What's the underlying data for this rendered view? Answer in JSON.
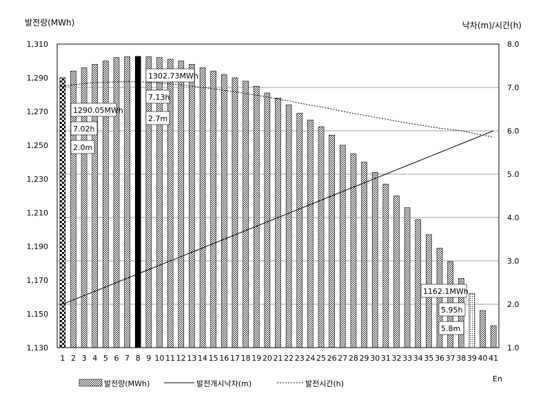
{
  "chart_data": {
    "type": "bar+line",
    "left_axis_title": "발전량(MWh)",
    "right_axis_title": "낙차(m)/시간(h)",
    "x_end_label": "En",
    "left_ylim": [
      1130,
      1310
    ],
    "left_ticks": [
      "1,130",
      "1,150",
      "1,170",
      "1,190",
      "1,210",
      "1,230",
      "1,250",
      "1,270",
      "1,290",
      "1,310"
    ],
    "right_ylim": [
      1.0,
      8.0
    ],
    "right_ticks": [
      "1.0",
      "2.0",
      "3.0",
      "4.0",
      "5.0",
      "6.0",
      "7.0",
      "8.0"
    ],
    "categories": [
      "1",
      "2",
      "3",
      "4",
      "5",
      "6",
      "7",
      "8",
      "9",
      "10",
      "11",
      "12",
      "13",
      "14",
      "15",
      "16",
      "17",
      "18",
      "19",
      "20",
      "21",
      "22",
      "23",
      "24",
      "25",
      "26",
      "27",
      "28",
      "29",
      "30",
      "31",
      "32",
      "33",
      "34",
      "35",
      "36",
      "37",
      "38",
      "39",
      "40",
      "41"
    ],
    "series": [
      {
        "name": "발전량(MWh)",
        "axis": "left",
        "values": [
          1290.05,
          1294,
          1296,
          1298,
          1300,
          1302,
          1302.5,
          1302.73,
          1302.5,
          1302,
          1301,
          1300,
          1298,
          1296,
          1294,
          1292,
          1290,
          1288,
          1285,
          1281,
          1278,
          1274,
          1269,
          1265,
          1261,
          1256,
          1250,
          1245,
          1240,
          1234,
          1227,
          1220,
          1213,
          1206,
          1197,
          1189,
          1181,
          1171,
          1162.1,
          1152,
          1143
        ]
      },
      {
        "name": "발전개시낙차(m)",
        "axis": "right",
        "values": [
          2.0,
          2.1,
          2.2,
          2.3,
          2.4,
          2.5,
          2.6,
          2.7,
          2.8,
          2.9,
          3.0,
          3.1,
          3.2,
          3.3,
          3.4,
          3.5,
          3.6,
          3.7,
          3.8,
          3.9,
          4.0,
          4.1,
          4.2,
          4.3,
          4.4,
          4.5,
          4.6,
          4.7,
          4.8,
          4.9,
          5.0,
          5.1,
          5.2,
          5.3,
          5.4,
          5.5,
          5.6,
          5.7,
          5.8,
          5.9,
          6.0
        ]
      },
      {
        "name": "발전시간(h)",
        "axis": "right",
        "values": [
          7.02,
          7.06,
          7.09,
          7.11,
          7.12,
          7.13,
          7.13,
          7.13,
          7.12,
          7.1,
          7.08,
          7.06,
          7.03,
          7.0,
          6.97,
          6.93,
          6.9,
          6.86,
          6.82,
          6.78,
          6.73,
          6.69,
          6.64,
          6.59,
          6.55,
          6.5,
          6.45,
          6.4,
          6.36,
          6.31,
          6.27,
          6.22,
          6.18,
          6.14,
          6.1,
          6.06,
          6.03,
          6.0,
          5.95,
          5.9,
          5.85
        ]
      }
    ],
    "annotations": [
      {
        "category": "1",
        "lines": [
          "1290.05MWh",
          "7.02h",
          "2.0m"
        ]
      },
      {
        "category": "8",
        "lines": [
          "1302.73MWh",
          "7.13h",
          "2.7m"
        ]
      },
      {
        "category": "39",
        "lines": [
          "1162.1MWh",
          "5.95h",
          "5.8m"
        ]
      }
    ],
    "highlight": {
      "checker": "1",
      "black": "8",
      "dotted": "39"
    },
    "grid": true,
    "legend_position": "bottom"
  }
}
